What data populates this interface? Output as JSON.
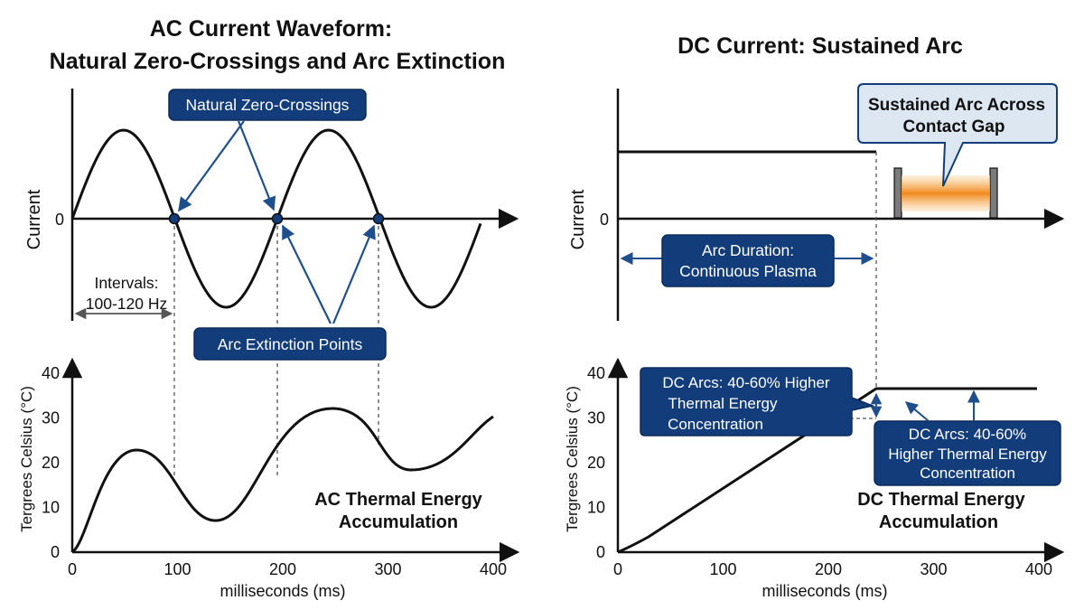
{
  "colors": {
    "navy": "#123c7a",
    "navy_stroke": "#0c2b5c",
    "arrow": "#1f4e8c",
    "ink": "#111111",
    "grey_dash": "#555555",
    "pale_blue": "#dde7f1",
    "arc_orange": "#f08a1c",
    "contact_grey": "#7b7b7b"
  },
  "left": {
    "title_line1": "AC Current Waveform:",
    "title_line2": "Natural Zero-Crossings and Arc Extinction",
    "current_label": "Current",
    "zero_label": "0",
    "zero_crossings_callout": "Natural Zero-Crossings",
    "arc_extinction_callout": "Arc Extinction Points",
    "intervals_line1": "Intervals:",
    "intervals_line2": "100-120 Hz",
    "thermal_label_line1": "AC Thermal Energy",
    "thermal_label_line2": "Accumulation",
    "y_axis_label": "Tergrees Celsius (°C)",
    "x_axis_label": "milliseconds (ms)",
    "y_ticks": [
      "0",
      "10",
      "20",
      "30",
      "40"
    ],
    "x_ticks": [
      "0",
      "100",
      "200",
      "300",
      "400"
    ]
  },
  "right": {
    "title": "DC Current: Sustained Arc",
    "current_label": "Current",
    "zero_label": "0",
    "sustained_callout_line1": "Sustained Arc Across",
    "sustained_callout_line2": "Contact Gap",
    "duration_line1": "Arc Duration:",
    "duration_line2": "Continuous Plasma",
    "dc_arcs_a_line1": "DC Arcs: 40-60% Higher",
    "dc_arcs_a_line2": "Thermal Energy",
    "dc_arcs_a_line3": "Concentration",
    "dc_arcs_b_line1": "DC Arcs: 40-60%",
    "dc_arcs_b_line2": "Higher Thermal Energy",
    "dc_arcs_b_line3": "Concentration",
    "thermal_label_line1": "DC Thermal Energy",
    "thermal_label_line2": "Accumulation",
    "y_axis_label": "Tergrees Celsius (°C)",
    "x_axis_label": "milliseconds (ms)",
    "y_ticks": [
      "0",
      "10",
      "20",
      "30",
      "40"
    ],
    "x_ticks": [
      "0",
      "100",
      "200",
      "300",
      "400"
    ]
  }
}
